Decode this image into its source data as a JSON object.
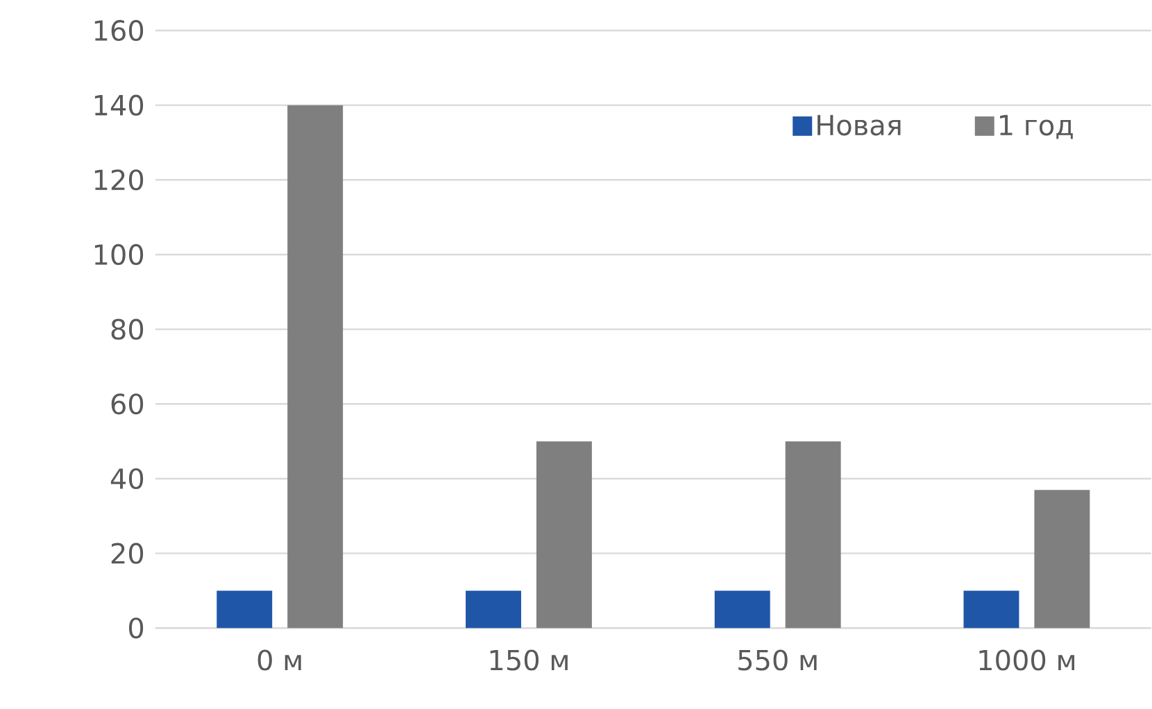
{
  "chart_data": {
    "type": "bar",
    "categories": [
      "0 м",
      "150 м",
      "550 м",
      "1000 м"
    ],
    "series": [
      {
        "name": "Новая",
        "color": "#1f56a8",
        "values": [
          10,
          10,
          10,
          10
        ]
      },
      {
        "name": "1 год",
        "color": "#7f7f7f",
        "values": [
          140,
          50,
          50,
          37
        ]
      }
    ],
    "ylim": [
      0,
      160
    ],
    "yticks": [
      0,
      20,
      40,
      60,
      80,
      100,
      120,
      140,
      160
    ],
    "grid": "y",
    "legend": "top right"
  }
}
